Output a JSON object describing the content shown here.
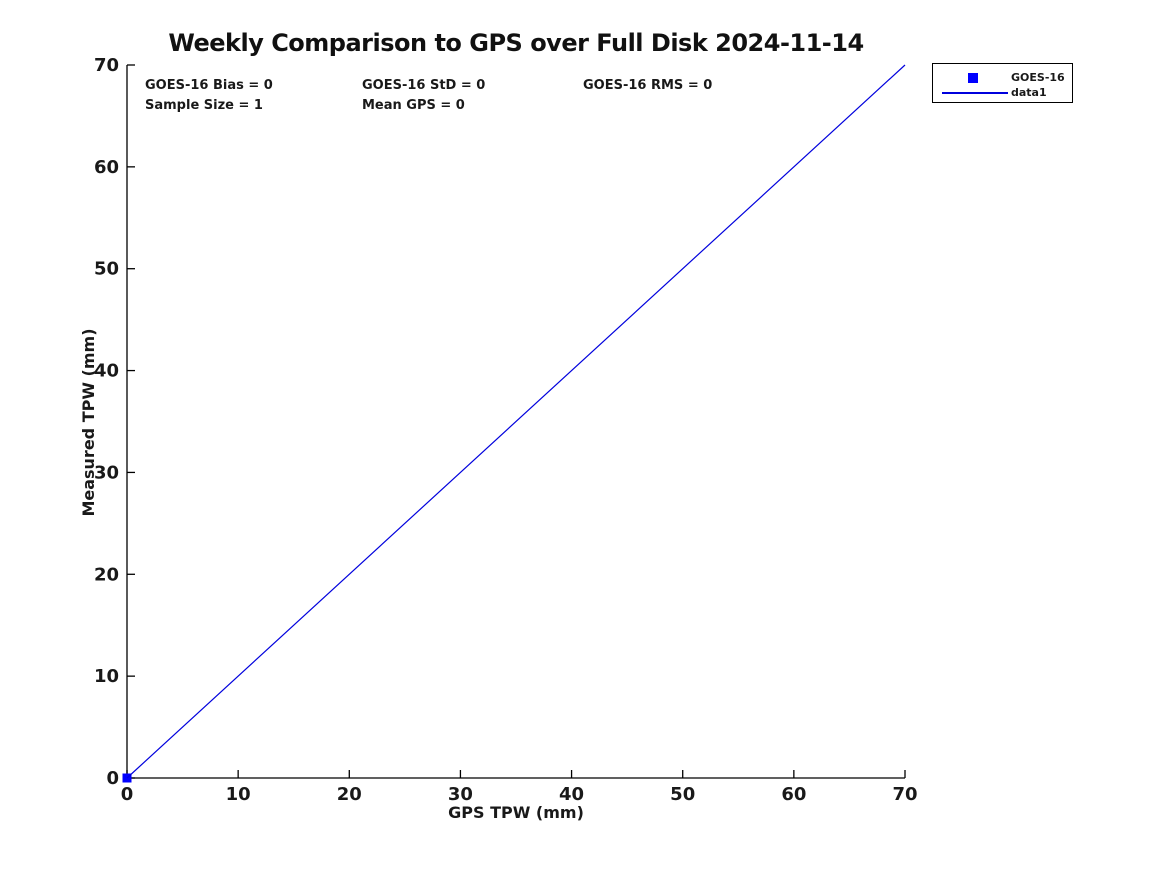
{
  "annotations": {
    "bias": "GOES-16 Bias = 0",
    "std": "GOES-16 StD = 0",
    "rms": "GOES-16 RMS = 0",
    "sample_size": "Sample Size = 1",
    "mean_gps": "Mean GPS = 0"
  },
  "legend": {
    "entries": [
      {
        "label": "GOES-16",
        "glyph": "square-marker",
        "color": "#0000ff"
      },
      {
        "label": "data1",
        "glyph": "line",
        "color": "#0000dd"
      }
    ]
  },
  "chart_data": {
    "type": "scatter",
    "title": "Weekly Comparison to GPS over Full Disk 2024-11-14",
    "xlabel": "GPS TPW (mm)",
    "ylabel": "Measured TPW (mm)",
    "xlim": [
      0,
      70
    ],
    "ylim": [
      0,
      70
    ],
    "x_ticks": [
      0,
      10,
      20,
      30,
      40,
      50,
      60,
      70
    ],
    "y_ticks": [
      0,
      10,
      20,
      30,
      40,
      50,
      60,
      70
    ],
    "grid": false,
    "legend_position": "outside-top-right",
    "series": [
      {
        "name": "GOES-16",
        "plot_type": "scatter",
        "marker": "square",
        "color": "#0000ff",
        "points": [
          [
            0,
            0
          ]
        ]
      },
      {
        "name": "data1",
        "plot_type": "line",
        "color": "#0000dd",
        "points": [
          [
            0,
            0
          ],
          [
            70,
            70
          ]
        ]
      }
    ]
  },
  "colors": {
    "axis": "#000000",
    "text": "#191919",
    "background": "#ffffff"
  }
}
